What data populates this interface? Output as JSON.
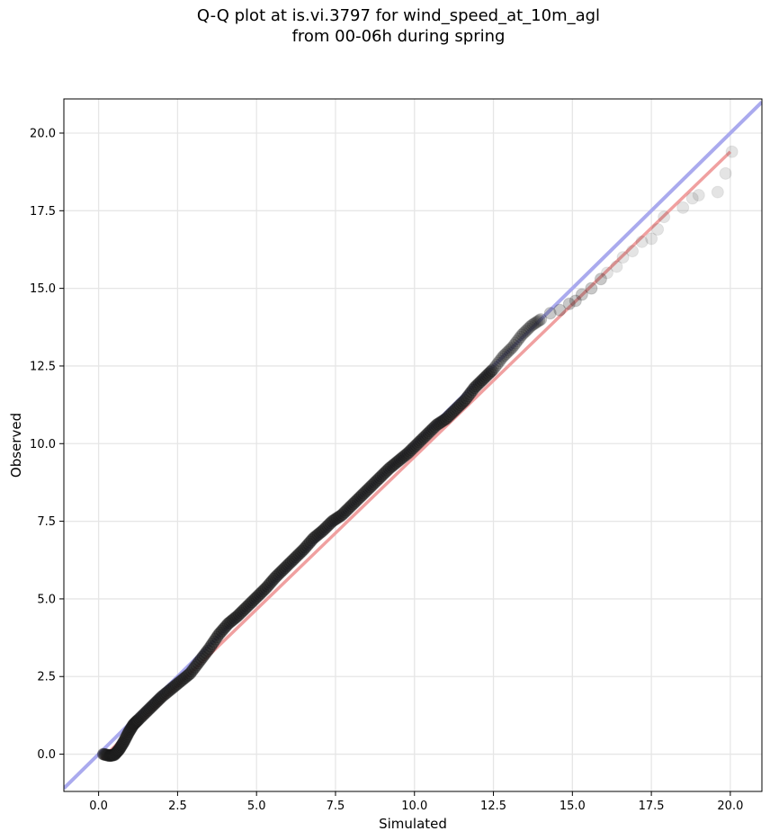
{
  "chart_data": {
    "type": "scatter",
    "title_lines": [
      "Q-Q plot at is.vi.3797 for wind_speed_at_10m_agl",
      "from 00-06h during spring"
    ],
    "xlabel": "Simulated",
    "ylabel": "Observed",
    "xlim": [
      -1.1,
      21.0
    ],
    "ylim": [
      -1.2,
      21.1
    ],
    "xticks": [
      0.0,
      2.5,
      5.0,
      7.5,
      10.0,
      12.5,
      15.0,
      17.5,
      20.0
    ],
    "yticks": [
      0.0,
      2.5,
      5.0,
      7.5,
      10.0,
      12.5,
      15.0,
      17.5,
      20.0
    ],
    "xtick_labels": [
      "0.0",
      "2.5",
      "5.0",
      "7.5",
      "10.0",
      "12.5",
      "15.0",
      "17.5",
      "20.0"
    ],
    "ytick_labels": [
      "0.0",
      "2.5",
      "5.0",
      "7.5",
      "10.0",
      "12.5",
      "15.0",
      "17.5",
      "20.0"
    ],
    "grid": true,
    "reference_line": {
      "x": [
        -1.1,
        21.0
      ],
      "y": [
        -1.1,
        21.0
      ],
      "color": "#aaaaee"
    },
    "fit_line": {
      "x": [
        0.1,
        20.0
      ],
      "y": [
        -0.15,
        19.4
      ],
      "color": "#f0a0a0"
    },
    "points": {
      "x": [
        0.15,
        0.35,
        0.5,
        0.65,
        0.8,
        0.95,
        1.1,
        1.25,
        1.5,
        1.75,
        2.0,
        2.3,
        2.6,
        2.9,
        3.2,
        3.5,
        3.8,
        4.1,
        4.4,
        4.7,
        5.0,
        5.3,
        5.6,
        5.9,
        6.2,
        6.5,
        6.8,
        7.1,
        7.4,
        7.7,
        8.0,
        8.3,
        8.6,
        8.9,
        9.2,
        9.5,
        9.8,
        10.1,
        10.4,
        10.7,
        11.0,
        11.3,
        11.6,
        11.9,
        12.2,
        12.5,
        12.8,
        13.1,
        13.4,
        13.7,
        14.0,
        14.3,
        14.6,
        14.9,
        15.1,
        15.3,
        15.6,
        15.9,
        16.1,
        16.4,
        16.6,
        16.9,
        17.2,
        17.5,
        17.7,
        17.9,
        18.5,
        18.8,
        19.0,
        19.6,
        19.85,
        20.05
      ],
      "y": [
        0.0,
        -0.05,
        -0.02,
        0.15,
        0.4,
        0.7,
        0.95,
        1.1,
        1.35,
        1.6,
        1.85,
        2.1,
        2.35,
        2.6,
        3.0,
        3.4,
        3.85,
        4.2,
        4.45,
        4.75,
        5.05,
        5.35,
        5.7,
        6.0,
        6.3,
        6.6,
        6.95,
        7.2,
        7.5,
        7.7,
        8.0,
        8.3,
        8.6,
        8.9,
        9.2,
        9.45,
        9.7,
        10.0,
        10.3,
        10.6,
        10.8,
        11.1,
        11.4,
        11.8,
        12.1,
        12.4,
        12.8,
        13.1,
        13.5,
        13.8,
        14.0,
        14.2,
        14.3,
        14.5,
        14.6,
        14.8,
        15.0,
        15.3,
        15.5,
        15.7,
        16.0,
        16.2,
        16.5,
        16.6,
        16.9,
        17.3,
        17.6,
        17.9,
        18.0,
        18.1,
        18.7,
        19.4
      ]
    }
  }
}
